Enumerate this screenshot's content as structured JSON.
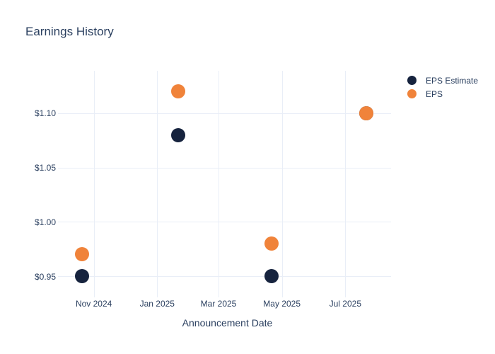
{
  "chart_data": {
    "type": "scatter",
    "title": "Earnings History",
    "xlabel": "Announcement Date",
    "ylabel": "",
    "grid": true,
    "legend_position": "outside-top-right",
    "x_range": [
      "2024-10-03",
      "2025-08-14"
    ],
    "y_range": [
      0.9337,
      1.1391
    ],
    "x_ticks": [
      {
        "label": "Nov 2024",
        "date": "2024-11-01"
      },
      {
        "label": "Jan 2025",
        "date": "2025-01-01"
      },
      {
        "label": "Mar 2025",
        "date": "2025-03-01"
      },
      {
        "label": "May 2025",
        "date": "2025-05-01"
      },
      {
        "label": "Jul 2025",
        "date": "2025-07-01"
      }
    ],
    "y_ticks": [
      {
        "label": "$0.95",
        "value": 0.95
      },
      {
        "label": "$1.00",
        "value": 1.0
      },
      {
        "label": "$1.05",
        "value": 1.05
      },
      {
        "label": "$1.10",
        "value": 1.1
      }
    ],
    "series": [
      {
        "name": "EPS Estimate",
        "color": "#16233e",
        "marker": "circle",
        "points": [
          {
            "x": "2024-10-21",
            "y": 0.95
          },
          {
            "x": "2025-01-21",
            "y": 1.08
          },
          {
            "x": "2025-04-21",
            "y": 0.95
          },
          {
            "x": "2025-07-21",
            "y": 1.1
          }
        ]
      },
      {
        "name": "EPS",
        "color": "#f0833a",
        "marker": "circle",
        "points": [
          {
            "x": "2024-10-21",
            "y": 0.97
          },
          {
            "x": "2025-01-21",
            "y": 1.12
          },
          {
            "x": "2025-04-21",
            "y": 0.98
          },
          {
            "x": "2025-07-21",
            "y": 1.1
          }
        ]
      }
    ],
    "colors": {
      "text": "#2a3f5f",
      "grid": "#e9eef7",
      "background": "#ffffff"
    }
  }
}
